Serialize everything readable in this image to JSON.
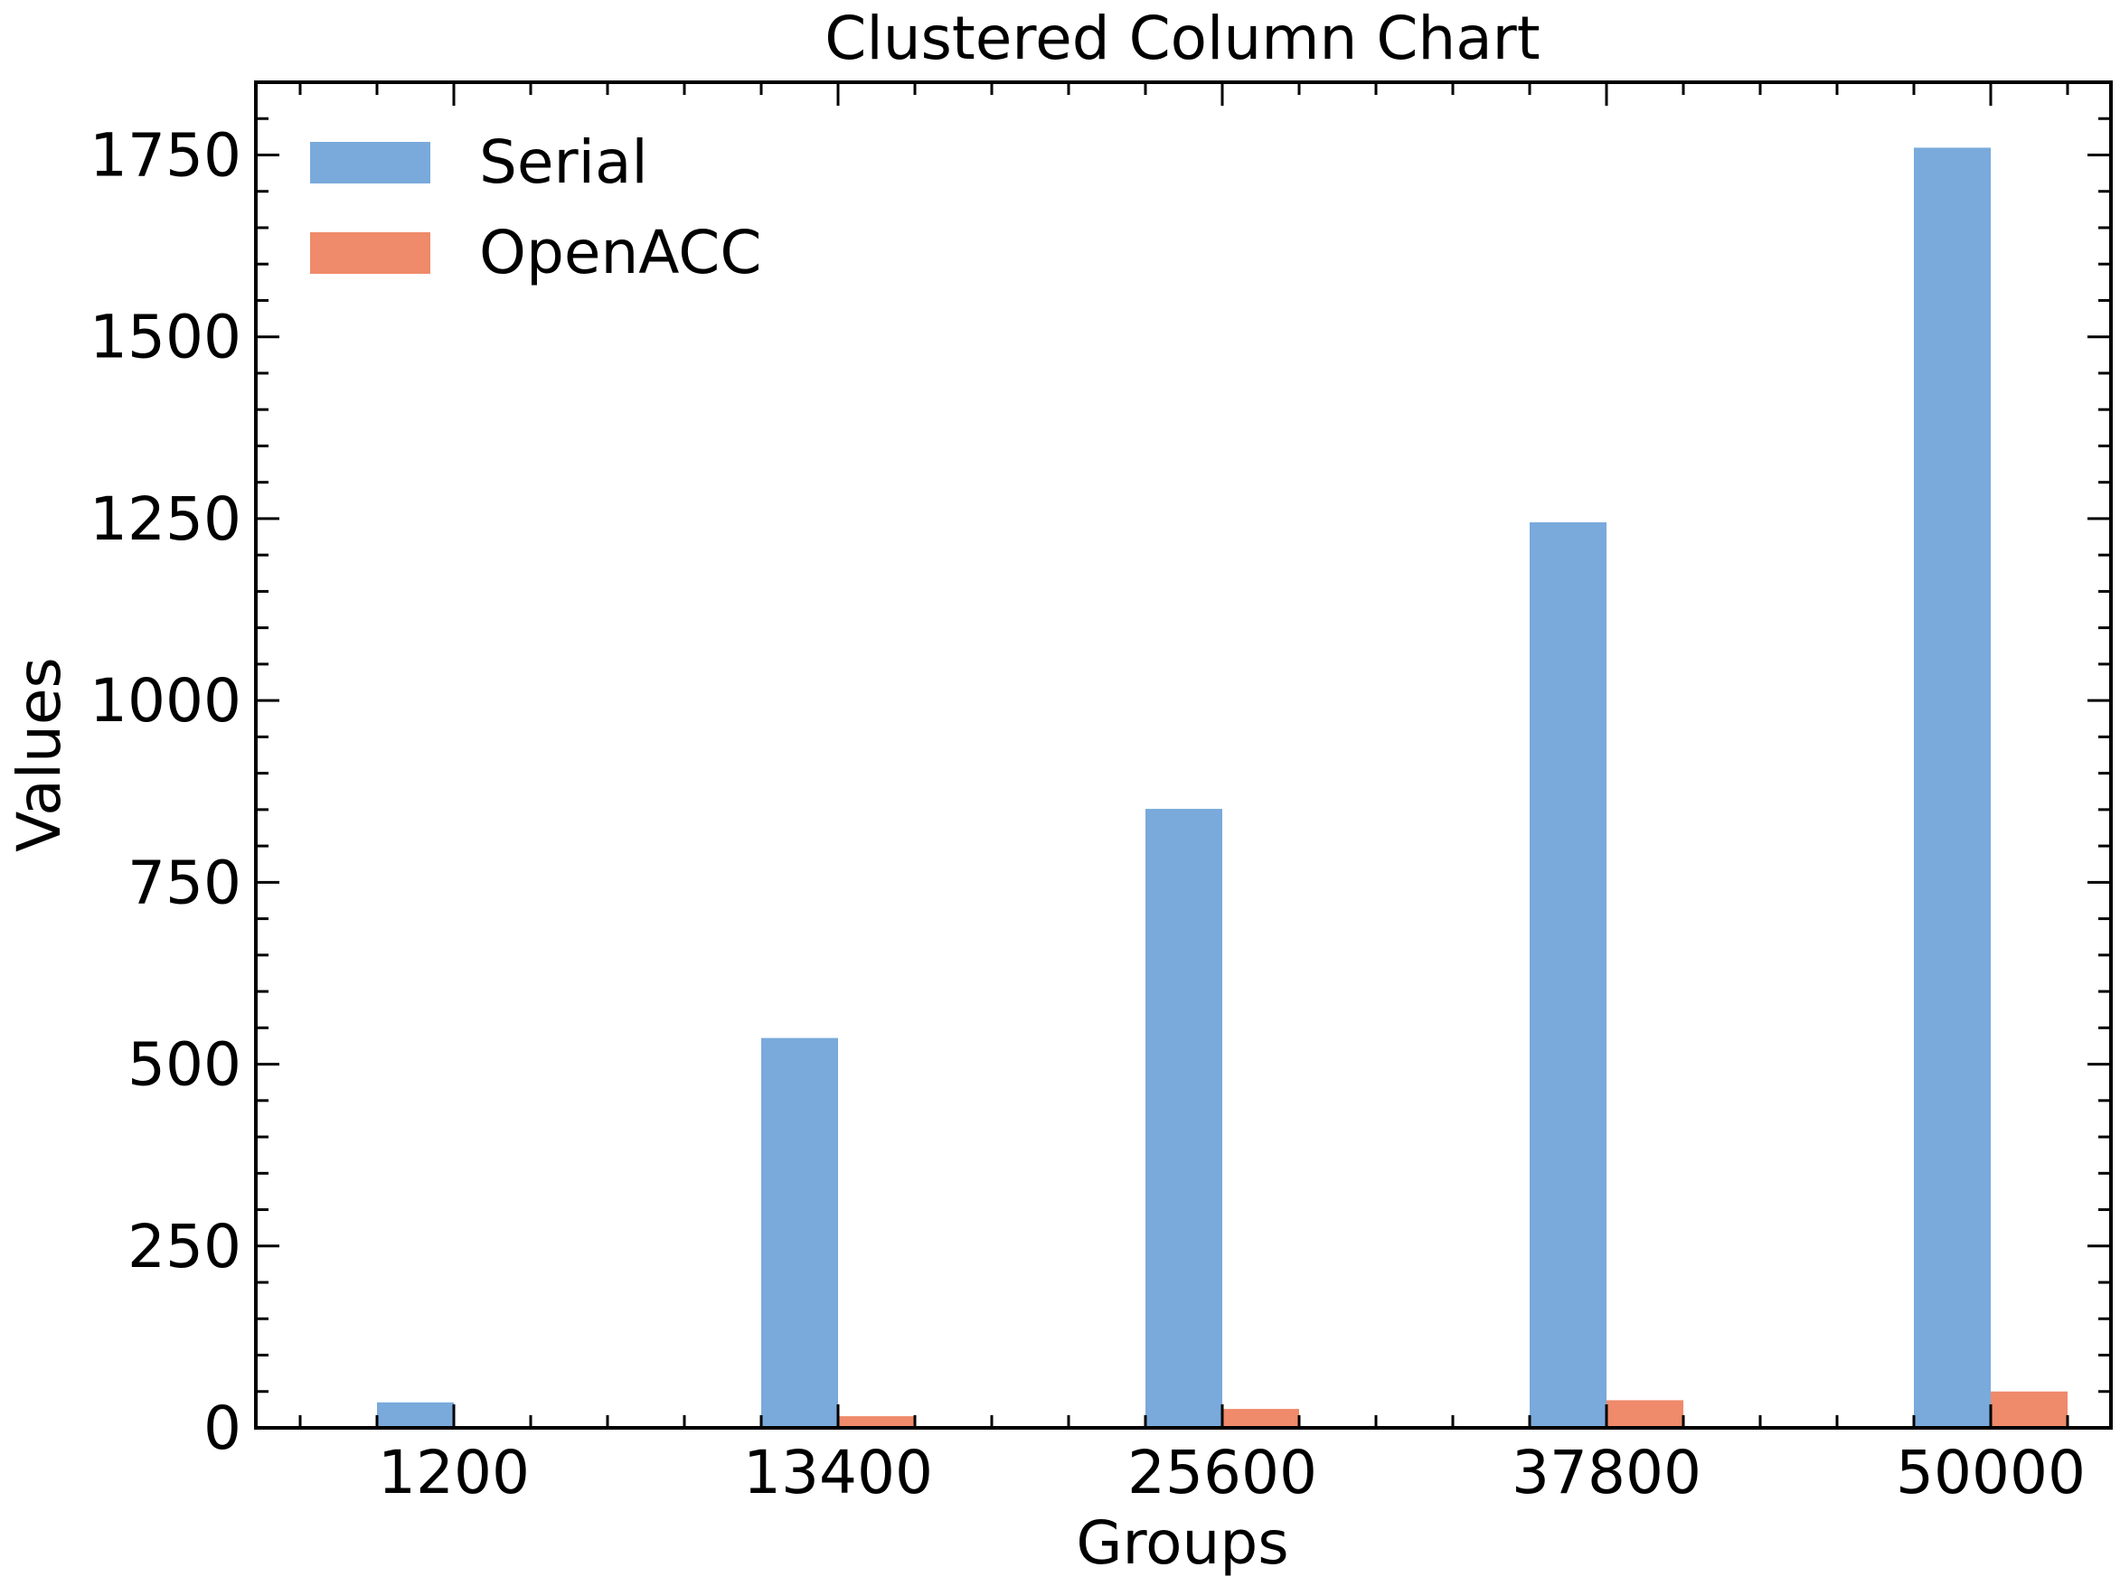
{
  "chart_data": {
    "type": "bar",
    "title": "Clustered Column Chart",
    "xlabel": "Groups",
    "ylabel": "Values",
    "categories": [
      "1200",
      "13400",
      "25600",
      "37800",
      "50000"
    ],
    "series": [
      {
        "name": "Serial",
        "color": "#79aadb",
        "values": [
          35,
          536,
          851,
          1245,
          1760
        ]
      },
      {
        "name": "OpenACC",
        "color": "#ef8a6a",
        "values": [
          0,
          16,
          26,
          38,
          50
        ]
      }
    ],
    "ylim": [
      0,
      1850
    ],
    "yticks": [
      0,
      250,
      500,
      750,
      1000,
      1250,
      1500,
      1750
    ],
    "grid": false,
    "legend_position": "top-left"
  }
}
